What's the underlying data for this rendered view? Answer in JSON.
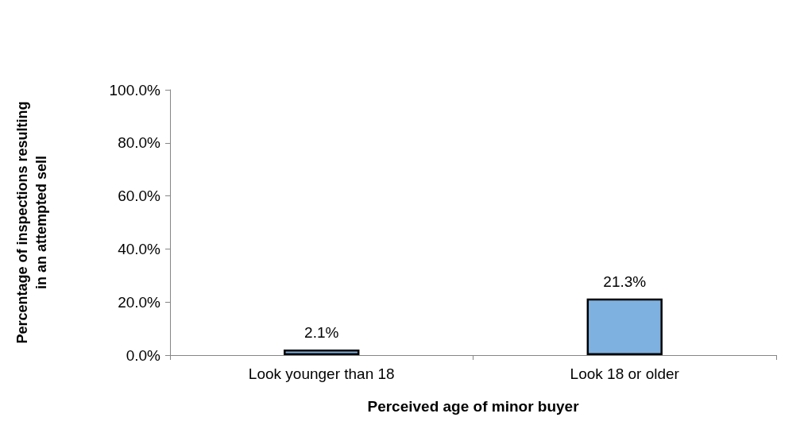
{
  "chart_data": {
    "type": "bar",
    "xlabel": "Perceived age of minor buyer",
    "ylabel": "Percentage of inspections resulting\nin an attempted sell",
    "categories": [
      "Look younger than 18",
      "Look 18 or older"
    ],
    "values": [
      2.1,
      21.3
    ],
    "value_labels": [
      "2.1%",
      "21.3%"
    ],
    "color": "#7fb1e0",
    "ylim": [
      0,
      100
    ],
    "yticks": [
      {
        "value": 0,
        "label": "0.0%"
      },
      {
        "value": 20,
        "label": "20.0%"
      },
      {
        "value": 40,
        "label": "40.0%"
      },
      {
        "value": 60,
        "label": "60.0%"
      },
      {
        "value": 80,
        "label": "80.0%"
      },
      {
        "value": 100,
        "label": "100.0%"
      }
    ],
    "grid": false
  }
}
